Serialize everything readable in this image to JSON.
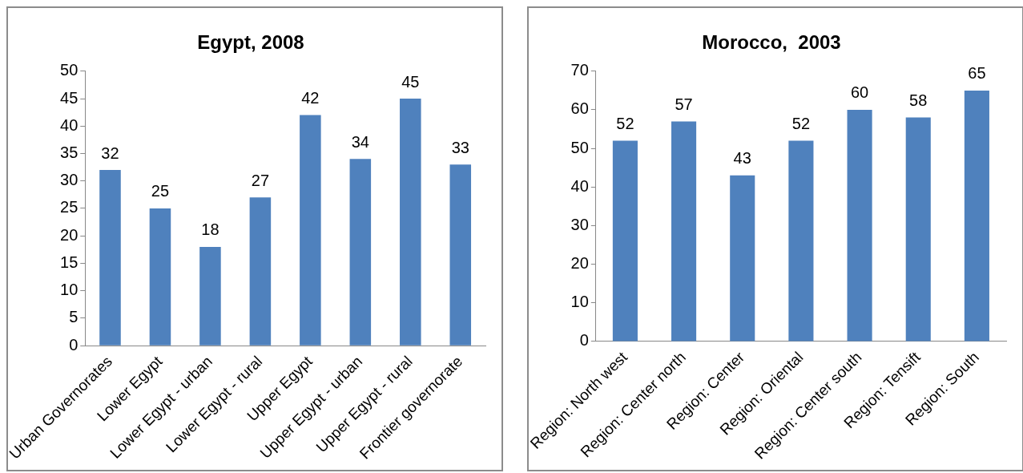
{
  "chart_data": [
    {
      "type": "bar",
      "title": "Egypt, 2008",
      "categories": [
        "Urban Governorates",
        "Lower Egypt",
        "Lower Egypt - urban",
        "Lower Egypt - rural",
        "Upper Egypt",
        "Upper Egypt - urban",
        "Upper Egypt - rural",
        "Frontier governorate"
      ],
      "values": [
        32,
        25,
        18,
        27,
        42,
        34,
        45,
        33
      ],
      "color": "#4f81bd",
      "ylim": [
        0,
        50
      ],
      "yticks": [
        0,
        5,
        10,
        15,
        20,
        25,
        30,
        35,
        40,
        45,
        50
      ],
      "grid": false,
      "legend": false,
      "data_labels": true
    },
    {
      "type": "bar",
      "title": "Morocco,  2003",
      "categories": [
        "Region: North west",
        "Region: Center north",
        "Region: Center",
        "Region: Oriental",
        "Region: Center south",
        "Region: Tensift",
        "Region: South"
      ],
      "values": [
        52,
        57,
        43,
        52,
        60,
        58,
        65
      ],
      "color": "#4f81bd",
      "ylim": [
        0,
        70
      ],
      "yticks": [
        0,
        10,
        20,
        30,
        40,
        50,
        60,
        70
      ],
      "grid": false,
      "legend": false,
      "data_labels": true
    }
  ]
}
